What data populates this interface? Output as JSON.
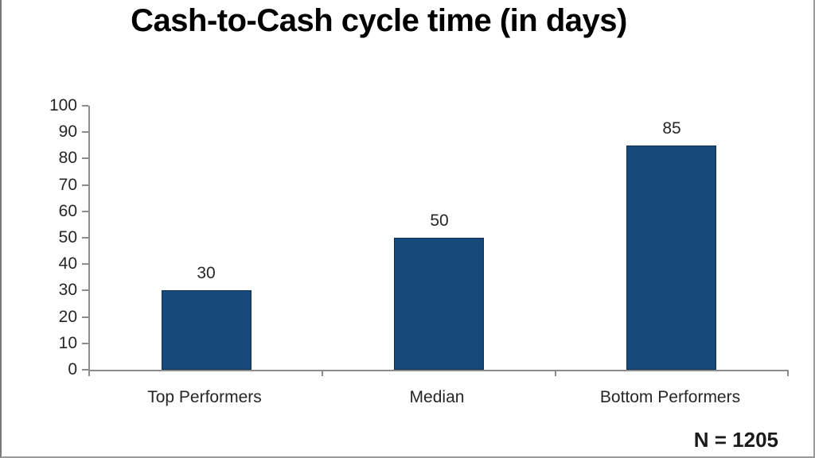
{
  "frame": {
    "background": "#ffffff",
    "border_color": "#8f8f8f"
  },
  "chart_data": {
    "type": "bar",
    "title": "Cash-to-Cash cycle time (in days)",
    "categories": [
      "Top Performers",
      "Median",
      "Bottom Performers"
    ],
    "values": [
      30,
      50,
      85
    ],
    "data_labels": [
      "30",
      "50",
      "85"
    ],
    "xlabel": "",
    "ylabel": "",
    "ylim": [
      0,
      100
    ],
    "ytick_step": 10,
    "ytick_labels": [
      "0",
      "10",
      "20",
      "30",
      "40",
      "50",
      "60",
      "70",
      "80",
      "90",
      "100"
    ],
    "grid": false,
    "legend": "none",
    "bar_color": "#164a7b",
    "bar_border_color": "#0d2f52",
    "axis_color": "#8c8c8c",
    "text_color": "#262626",
    "title_color": "#000000",
    "note": "N = 1205"
  }
}
